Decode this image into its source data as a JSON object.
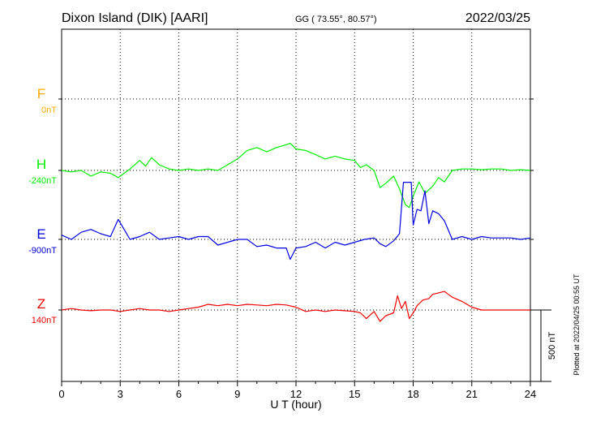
{
  "header": {
    "station": "Dixon Island (DIK)  [AARI]",
    "coords": "GG ( 73.55°,  80.57°)",
    "date": "2022/03/25"
  },
  "side_note": "Plotted at 2022/04/25 00:55 UT",
  "scale_label": "500 nT",
  "colors": {
    "F": "#ffaa00",
    "H": "#00ee00",
    "E": "#0000dd",
    "Z": "#ee0000",
    "axis": "#000000"
  },
  "chart_data": {
    "type": "line",
    "xlabel": "U T (hour)",
    "xlim": [
      0,
      24
    ],
    "x_ticks": [
      "0",
      "3",
      "6",
      "9",
      "12",
      "15",
      "18",
      "21",
      "24"
    ],
    "grid": "dotted vertical every 3 h; dotted baseline per component",
    "series": [
      {
        "name": "F",
        "baseline_label": "0nT",
        "x": [],
        "values": []
      },
      {
        "name": "H",
        "baseline_label": "-240nT",
        "x": [
          0,
          0.5,
          1,
          1.5,
          2,
          2.5,
          2.9,
          3.2,
          3.5,
          4,
          4.3,
          4.6,
          5,
          5.5,
          6,
          6.5,
          7,
          7.5,
          8,
          8.5,
          9,
          9.5,
          10,
          10.5,
          11,
          11.5,
          11.7,
          12,
          12.5,
          13,
          13.5,
          14,
          14.5,
          15,
          15.3,
          15.6,
          16,
          16.3,
          16.6,
          17,
          17.3,
          17.6,
          17.8,
          18,
          18.3,
          18.6,
          19,
          19.3,
          19.6,
          20,
          20.5,
          21,
          21.5,
          22,
          22.5,
          23,
          23.5,
          24
        ],
        "values": [
          -240,
          -250,
          -240,
          -280,
          -250,
          -260,
          -290,
          -260,
          -230,
          -170,
          -210,
          -150,
          -200,
          -230,
          -240,
          -230,
          -240,
          -230,
          -240,
          -200,
          -160,
          -100,
          -80,
          -110,
          -80,
          -60,
          -50,
          -90,
          -100,
          -130,
          -160,
          -140,
          -160,
          -170,
          -220,
          -200,
          -240,
          -360,
          -330,
          -280,
          -370,
          -480,
          -500,
          -420,
          -320,
          -400,
          -350,
          -290,
          -320,
          -240,
          -230,
          -230,
          -235,
          -230,
          -230,
          -240,
          -235,
          -240
        ]
      },
      {
        "name": "E",
        "baseline_label": "-900nT",
        "x": [
          0,
          0.5,
          1,
          1.5,
          2,
          2.5,
          2.9,
          3.2,
          3.5,
          4,
          4.5,
          5,
          5.5,
          6,
          6.5,
          7,
          7.5,
          8,
          8.5,
          9,
          9.5,
          10,
          10.5,
          11,
          11.5,
          11.7,
          12,
          12.5,
          13,
          13.5,
          14,
          14.5,
          15,
          15.5,
          16,
          16.3,
          16.6,
          17,
          17.3,
          17.5,
          17.7,
          17.9,
          18,
          18.2,
          18.4,
          18.6,
          18.8,
          19,
          19.3,
          19.6,
          20,
          20.5,
          21,
          21.5,
          22,
          22.5,
          23,
          23.5,
          24
        ],
        "values": [
          -870,
          -900,
          -850,
          -830,
          -860,
          -880,
          -760,
          -830,
          -900,
          -880,
          -850,
          -900,
          -890,
          -880,
          -900,
          -880,
          -880,
          -940,
          -920,
          -900,
          -900,
          -950,
          -940,
          -960,
          -960,
          -1040,
          -960,
          -950,
          -920,
          -960,
          -920,
          -940,
          -920,
          -900,
          -890,
          -930,
          -950,
          -910,
          -860,
          -500,
          -500,
          -500,
          -800,
          -690,
          -700,
          -560,
          -790,
          -700,
          -720,
          -770,
          -900,
          -880,
          -900,
          -880,
          -890,
          -890,
          -890,
          -900,
          -890
        ]
      },
      {
        "name": "Z",
        "baseline_label": "140nT",
        "x": [
          0,
          0.5,
          1,
          1.5,
          2,
          2.5,
          3,
          3.5,
          4,
          4.5,
          5,
          5.5,
          6,
          6.5,
          7,
          7.5,
          8,
          8.5,
          9,
          9.5,
          10,
          10.5,
          11,
          11.5,
          12,
          12.5,
          13,
          13.5,
          14,
          14.5,
          15,
          15.3,
          15.6,
          16,
          16.3,
          16.6,
          17,
          17.2,
          17.4,
          17.6,
          17.8,
          18,
          18.2,
          18.5,
          18.8,
          19,
          19.3,
          19.6,
          20,
          20.5,
          21,
          21.5,
          22,
          22.5,
          23,
          23.5,
          24
        ],
        "values": [
          140,
          150,
          140,
          135,
          140,
          140,
          130,
          140,
          150,
          140,
          140,
          130,
          140,
          150,
          160,
          180,
          170,
          180,
          170,
          180,
          175,
          170,
          180,
          175,
          160,
          130,
          140,
          130,
          140,
          135,
          130,
          120,
          80,
          130,
          60,
          100,
          120,
          240,
          150,
          200,
          80,
          120,
          170,
          210,
          220,
          250,
          260,
          270,
          230,
          200,
          160,
          140,
          140,
          140,
          140,
          140,
          140
        ]
      }
    ]
  }
}
